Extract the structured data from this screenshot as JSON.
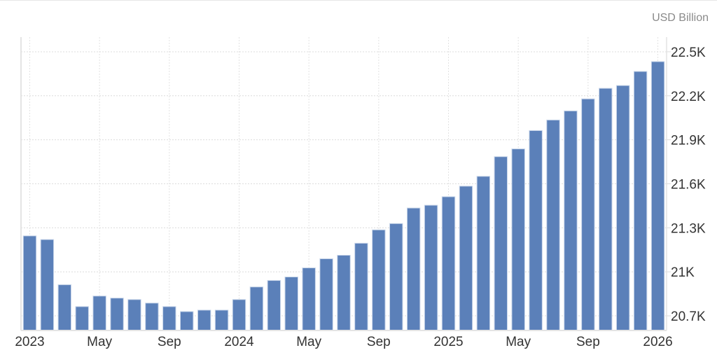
{
  "chart_data": {
    "type": "bar",
    "unit_label": "USD Billion",
    "categories": [
      "2023-01",
      "2023-02",
      "2023-03",
      "2023-04",
      "2023-05",
      "2023-06",
      "2023-07",
      "2023-08",
      "2023-09",
      "2023-10",
      "2023-11",
      "2023-12",
      "2024-01",
      "2024-02",
      "2024-03",
      "2024-04",
      "2024-05",
      "2024-06",
      "2024-07",
      "2024-08",
      "2024-09",
      "2024-10",
      "2024-11",
      "2024-12",
      "2025-01",
      "2025-02",
      "2025-03",
      "2025-04",
      "2025-05",
      "2025-06",
      "2025-07",
      "2025-08",
      "2025-09",
      "2025-10",
      "2025-11",
      "2025-12",
      "2026-01"
    ],
    "values": [
      21245,
      21220,
      20912,
      20763,
      20835,
      20821,
      20811,
      20787,
      20763,
      20729,
      20739,
      20739,
      20811,
      20897,
      20941,
      20965,
      21027,
      21089,
      21113,
      21195,
      21286,
      21329,
      21435,
      21454,
      21512,
      21584,
      21651,
      21785,
      21838,
      21963,
      22035,
      22097,
      22179,
      22251,
      22270,
      22366,
      22433
    ],
    "x_tick_labels": [
      {
        "index": 0,
        "label": "2023"
      },
      {
        "index": 4,
        "label": "May"
      },
      {
        "index": 8,
        "label": "Sep"
      },
      {
        "index": 12,
        "label": "2024"
      },
      {
        "index": 16,
        "label": "May"
      },
      {
        "index": 20,
        "label": "Sep"
      },
      {
        "index": 24,
        "label": "2025"
      },
      {
        "index": 28,
        "label": "May"
      },
      {
        "index": 32,
        "label": "Sep"
      },
      {
        "index": 36,
        "label": "2026"
      }
    ],
    "y_ticks": [
      20700,
      21000,
      21300,
      21600,
      21900,
      22200,
      22500
    ],
    "y_tick_labels": [
      "20.7K",
      "21K",
      "21.3K",
      "21.6K",
      "21.9K",
      "22.2K",
      "22.5K"
    ],
    "ylim": [
      20600,
      22600
    ],
    "y_axis_side": "right",
    "grid": true,
    "bar_color": "#5b80b9"
  }
}
